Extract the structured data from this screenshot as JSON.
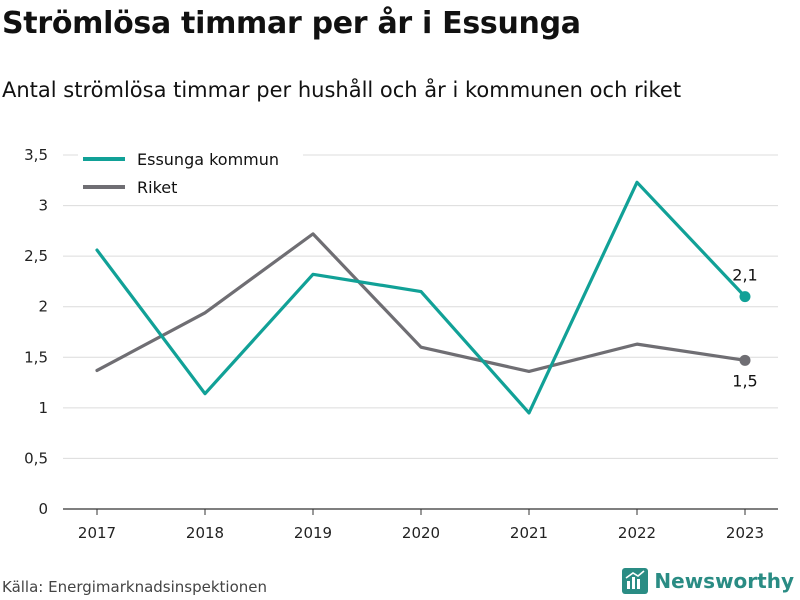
{
  "chart_data": {
    "type": "line",
    "title": "Strömlösa timmar per år i Essunga",
    "subtitle": "Antal strömlösa timmar per hushåll och år i kommunen och riket",
    "categories": [
      "2017",
      "2018",
      "2019",
      "2020",
      "2021",
      "2022",
      "2023"
    ],
    "series": [
      {
        "name": "Essunga kommun",
        "color": "#11a197",
        "values": [
          2.56,
          1.14,
          2.32,
          2.15,
          0.95,
          3.23,
          2.1
        ],
        "end_label": "2,1"
      },
      {
        "name": "Riket",
        "color": "#6f6e73",
        "values": [
          1.37,
          1.94,
          2.72,
          1.6,
          1.36,
          1.63,
          1.47
        ],
        "end_label": "1,5"
      }
    ],
    "ylim": [
      0,
      3.5
    ],
    "yticks": [
      0,
      0.5,
      1,
      1.5,
      2,
      2.5,
      3,
      3.5
    ],
    "ytick_labels": [
      "0",
      "0,5",
      "1",
      "1,5",
      "2",
      "2,5",
      "3",
      "3,5"
    ],
    "grid": true,
    "legend_position": "top-left",
    "xlabel": "",
    "ylabel": ""
  },
  "footer": {
    "source": "Källa: Energimarknadsinspektionen",
    "brand": "Newsworthy",
    "brand_icon": "bar-chart-logo-icon"
  }
}
